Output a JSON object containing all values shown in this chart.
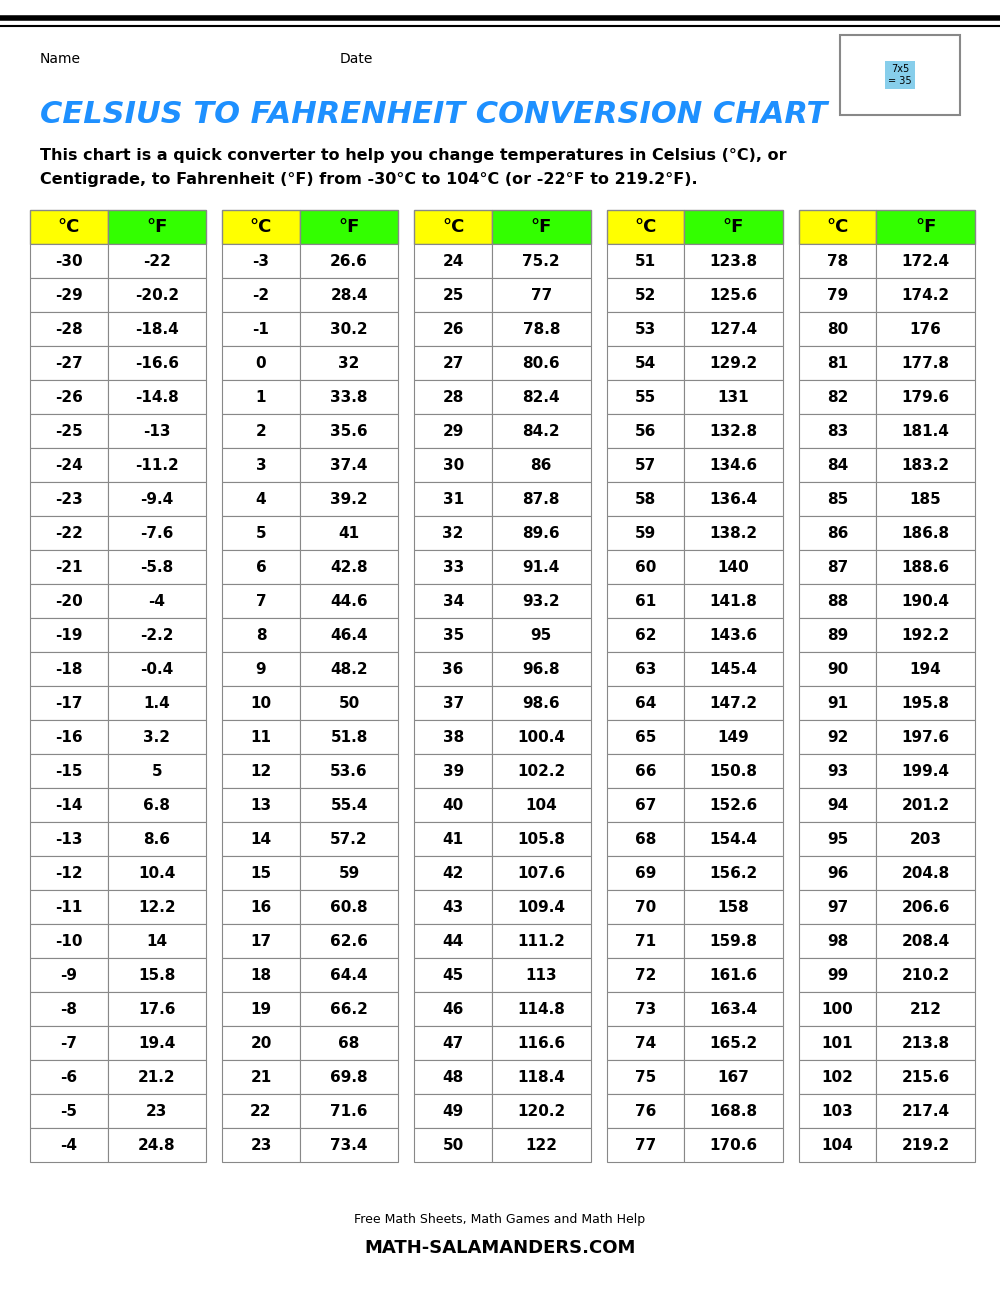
{
  "title": "CELSIUS TO FAHRENHEIT CONVERSION CHART",
  "title_color": "#1E90FF",
  "subtitle_line1": "This chart is a quick converter to help you change temperatures in Celsius (°C), or",
  "subtitle_line2": "Centigrade, to Fahrenheit (°F) from -30°C to 104°C (or -22°F to 219.2°F).",
  "header_celsius_color": "#FFFF00",
  "header_fahrenheit_color": "#33FF00",
  "border_color": "#888888",
  "celsius_values": [
    -30,
    -29,
    -28,
    -27,
    -26,
    -25,
    -24,
    -23,
    -22,
    -21,
    -20,
    -19,
    -18,
    -17,
    -16,
    -15,
    -14,
    -13,
    -12,
    -11,
    -10,
    -9,
    -8,
    -7,
    -6,
    -5,
    -4,
    -3,
    -2,
    -1,
    0,
    1,
    2,
    3,
    4,
    5,
    6,
    7,
    8,
    9,
    10,
    11,
    12,
    13,
    14,
    15,
    16,
    17,
    18,
    19,
    20,
    21,
    22,
    23,
    24,
    25,
    26,
    27,
    28,
    29,
    30,
    31,
    32,
    33,
    34,
    35,
    36,
    37,
    38,
    39,
    40,
    41,
    42,
    43,
    44,
    45,
    46,
    47,
    48,
    49,
    50,
    51,
    52,
    53,
    54,
    55,
    56,
    57,
    58,
    59,
    60,
    61,
    62,
    63,
    64,
    65,
    66,
    67,
    68,
    69,
    70,
    71,
    72,
    73,
    74,
    75,
    76,
    77,
    78,
    79,
    80,
    81,
    82,
    83,
    84,
    85,
    86,
    87,
    88,
    89,
    90,
    91,
    92,
    93,
    94,
    95,
    96,
    97,
    98,
    99,
    100,
    101,
    102,
    103,
    104
  ],
  "fahrenheit_values": [
    -22,
    -20.2,
    -18.4,
    -16.6,
    -14.8,
    -13,
    -11.2,
    -9.4,
    -7.6,
    -5.8,
    -4,
    -2.2,
    -0.4,
    1.4,
    3.2,
    5,
    6.8,
    8.6,
    10.4,
    12.2,
    14,
    15.8,
    17.6,
    19.4,
    21.2,
    23,
    24.8,
    26.6,
    28.4,
    30.2,
    32,
    33.8,
    35.6,
    37.4,
    39.2,
    41,
    42.8,
    44.6,
    46.4,
    48.2,
    50,
    51.8,
    53.6,
    55.4,
    57.2,
    59,
    60.8,
    62.6,
    64.4,
    66.2,
    68,
    69.8,
    71.6,
    73.4,
    75.2,
    77,
    78.8,
    80.6,
    82.4,
    84.2,
    86,
    87.8,
    89.6,
    91.4,
    93.2,
    95,
    96.8,
    98.6,
    100.4,
    102.2,
    104,
    105.8,
    107.6,
    109.4,
    111.2,
    113,
    114.8,
    116.6,
    118.4,
    120.2,
    122,
    123.8,
    125.6,
    127.4,
    129.2,
    131,
    132.8,
    134.6,
    136.4,
    138.2,
    140,
    141.8,
    143.6,
    145.4,
    147.2,
    149,
    150.8,
    152.6,
    154.4,
    156.2,
    158,
    159.8,
    161.6,
    163.4,
    165.2,
    167,
    168.8,
    170.6,
    172.4,
    174.2,
    176,
    177.8,
    179.6,
    181.4,
    183.2,
    185,
    186.8,
    188.6,
    190.4,
    192.2,
    194,
    195.8,
    197.6,
    199.4,
    201.2,
    203,
    204.8,
    206.6,
    208.4,
    210.2,
    212,
    213.8,
    215.6,
    217.4,
    219.2
  ],
  "name_label": "Name",
  "date_label": "Date",
  "footer_text": "Free Math Sheets, Math Games and Math Help",
  "footer_site": "MATH-SALAMANDERS.COM",
  "rows_per_col": 27,
  "num_col_groups": 5,
  "fig_width": 10.0,
  "fig_height": 12.94,
  "dpi": 100
}
